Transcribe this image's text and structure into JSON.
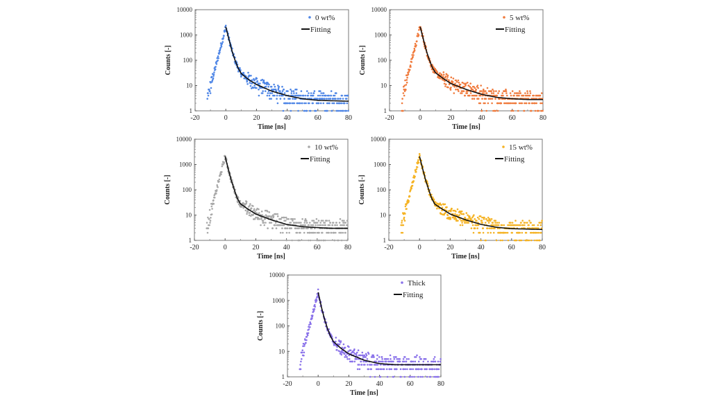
{
  "figure": {
    "description": "Time-resolved photoluminescence decay curves for five samples with bi-exponential fits"
  },
  "chart_data": [
    {
      "type": "scatter",
      "panel": "0 wt%",
      "title": "",
      "xlabel": "Time [ns]",
      "ylabel": "Counts [-]",
      "xlim": [
        -20,
        80
      ],
      "ylim": [
        1,
        10000
      ],
      "yscale": "log",
      "xticks": [
        "-20",
        "0",
        "20",
        "40",
        "60",
        "80"
      ],
      "yticks": [
        "1",
        "10",
        "100",
        "1000",
        "10000"
      ],
      "grid": false,
      "legend": {
        "position": "top-right",
        "entries": [
          "0 wt%",
          "Fitting"
        ]
      },
      "series": [
        {
          "name": "0 wt%",
          "kind": "points",
          "color": "#4f86e6",
          "rise_start_ns": -12,
          "peak": {
            "x": 0,
            "y": 2100
          },
          "background_counts": [
            1,
            7
          ]
        },
        {
          "name": "Fitting",
          "kind": "line",
          "color": "#111111",
          "points": [
            [
              0,
              2100
            ],
            [
              2,
              700
            ],
            [
              4,
              240
            ],
            [
              6,
              100
            ],
            [
              8,
              50
            ],
            [
              10,
              30
            ],
            [
              15,
              17
            ],
            [
              20,
              11
            ],
            [
              30,
              6
            ],
            [
              40,
              4
            ],
            [
              50,
              3
            ],
            [
              60,
              2.6
            ],
            [
              70,
              2.5
            ],
            [
              80,
              2.4
            ]
          ]
        }
      ]
    },
    {
      "type": "scatter",
      "panel": "5 wt%",
      "title": "",
      "xlabel": "Time [ns]",
      "ylabel": "Counts [-]",
      "xlim": [
        -20,
        80
      ],
      "ylim": [
        1,
        10000
      ],
      "yscale": "log",
      "xticks": [
        "-20",
        "0",
        "20",
        "40",
        "60",
        "80"
      ],
      "yticks": [
        "1",
        "10",
        "100",
        "1000",
        "10000"
      ],
      "grid": false,
      "legend": {
        "position": "top-right",
        "entries": [
          "5 wt%",
          "Fitting"
        ]
      },
      "series": [
        {
          "name": "5 wt%",
          "kind": "points",
          "color": "#f07a3c",
          "rise_start_ns": -12,
          "peak": {
            "x": 0,
            "y": 2100
          },
          "background_counts": [
            1,
            7
          ]
        },
        {
          "name": "Fitting",
          "kind": "line",
          "color": "#111111",
          "points": [
            [
              0,
              2100
            ],
            [
              2,
              700
            ],
            [
              4,
              240
            ],
            [
              6,
              100
            ],
            [
              8,
              50
            ],
            [
              10,
              32
            ],
            [
              15,
              19
            ],
            [
              20,
              12
            ],
            [
              30,
              7
            ],
            [
              40,
              4.5
            ],
            [
              50,
              3.4
            ],
            [
              60,
              3
            ],
            [
              70,
              2.8
            ],
            [
              80,
              2.8
            ]
          ]
        }
      ]
    },
    {
      "type": "scatter",
      "panel": "10 wt%",
      "title": "",
      "xlabel": "Time [ns]",
      "ylabel": "Counts [-]",
      "xlim": [
        -20,
        80
      ],
      "ylim": [
        1,
        10000
      ],
      "yscale": "log",
      "xticks": [
        "-20",
        "0",
        "20",
        "40",
        "60",
        "80"
      ],
      "yticks": [
        "1",
        "10",
        "100",
        "1000",
        "10000"
      ],
      "grid": false,
      "legend": {
        "position": "top-right",
        "entries": [
          "10 wt%",
          "Fitting"
        ]
      },
      "series": [
        {
          "name": "10 wt%",
          "kind": "points",
          "color": "#a8a8a8",
          "rise_start_ns": -12,
          "peak": {
            "x": 0,
            "y": 2100
          },
          "background_counts": [
            2,
            7
          ]
        },
        {
          "name": "Fitting",
          "kind": "line",
          "color": "#111111",
          "points": [
            [
              0,
              2100
            ],
            [
              2,
              700
            ],
            [
              4,
              240
            ],
            [
              6,
              100
            ],
            [
              8,
              45
            ],
            [
              10,
              28
            ],
            [
              15,
              17
            ],
            [
              20,
              11
            ],
            [
              30,
              6.5
            ],
            [
              40,
              4.3
            ],
            [
              50,
              3.5
            ],
            [
              60,
              3.2
            ],
            [
              70,
              3
            ],
            [
              80,
              3
            ]
          ]
        }
      ]
    },
    {
      "type": "scatter",
      "panel": "15 wt%",
      "title": "",
      "xlabel": "Time [ns]",
      "ylabel": "Counts [-]",
      "xlim": [
        -20,
        80
      ],
      "ylim": [
        1,
        10000
      ],
      "yscale": "log",
      "xticks": [
        "-20",
        "0",
        "20",
        "40",
        "60",
        "80"
      ],
      "yticks": [
        "1",
        "10",
        "100",
        "1000",
        "10000"
      ],
      "grid": false,
      "legend": {
        "position": "top-right",
        "entries": [
          "15 wt%",
          "Fitting"
        ]
      },
      "series": [
        {
          "name": "15 wt%",
          "kind": "points",
          "color": "#f5b324",
          "rise_start_ns": -12,
          "peak": {
            "x": 0,
            "y": 2100
          },
          "background_counts": [
            1,
            8
          ]
        },
        {
          "name": "Fitting",
          "kind": "line",
          "color": "#111111",
          "points": [
            [
              0,
              2100
            ],
            [
              2,
              700
            ],
            [
              4,
              240
            ],
            [
              6,
              100
            ],
            [
              8,
              45
            ],
            [
              10,
              27
            ],
            [
              15,
              17
            ],
            [
              20,
              11
            ],
            [
              30,
              6.5
            ],
            [
              40,
              4.3
            ],
            [
              50,
              3.3
            ],
            [
              60,
              2.9
            ],
            [
              70,
              2.8
            ],
            [
              80,
              2.7
            ]
          ]
        }
      ]
    },
    {
      "type": "scatter",
      "panel": "Thick",
      "title": "",
      "xlabel": "Time [ns]",
      "ylabel": "Counts [-]",
      "xlim": [
        -20,
        80
      ],
      "ylim": [
        1,
        10000
      ],
      "yscale": "log",
      "xticks": [
        "-20",
        "0",
        "20",
        "40",
        "60",
        "80"
      ],
      "yticks": [
        "1",
        "10",
        "100",
        "1000",
        "10000"
      ],
      "grid": false,
      "legend": {
        "position": "top-right",
        "entries": [
          "Thick",
          "Fitting"
        ]
      },
      "series": [
        {
          "name": "Thick",
          "kind": "points",
          "color": "#8a72ea",
          "rise_start_ns": -12,
          "peak": {
            "x": 0,
            "y": 2100
          },
          "background_counts": [
            1,
            8
          ]
        },
        {
          "name": "Fitting",
          "kind": "line",
          "color": "#111111",
          "points": [
            [
              0,
              2100
            ],
            [
              2,
              600
            ],
            [
              4,
              200
            ],
            [
              6,
              80
            ],
            [
              8,
              40
            ],
            [
              10,
              24
            ],
            [
              15,
              13
            ],
            [
              20,
              8
            ],
            [
              30,
              4.5
            ],
            [
              40,
              3.3
            ],
            [
              50,
              3
            ],
            [
              60,
              3
            ],
            [
              70,
              3
            ],
            [
              80,
              3
            ]
          ]
        }
      ]
    }
  ]
}
